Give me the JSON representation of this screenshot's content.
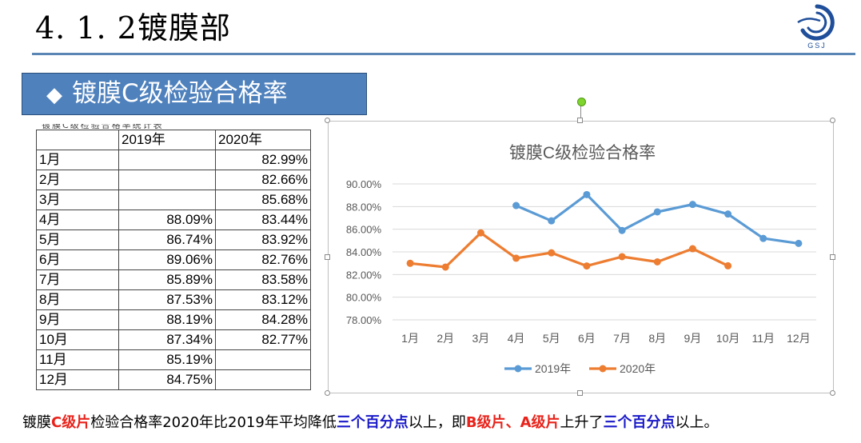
{
  "slide": {
    "title": "4. 1. 2镀膜部",
    "logo_text": "GSJ",
    "banner_glyph": "◆",
    "banner_text": "镀膜C级检验合格率",
    "cut_text": "镀膜C级检验合格率统计表"
  },
  "table": {
    "header": [
      "",
      "2019年",
      "2020年"
    ],
    "rows": [
      [
        "1月",
        "",
        "82.99%"
      ],
      [
        "2月",
        "",
        "82.66%"
      ],
      [
        "3月",
        "",
        "85.68%"
      ],
      [
        "4月",
        "88.09%",
        "83.44%"
      ],
      [
        "5月",
        "86.74%",
        "83.92%"
      ],
      [
        "6月",
        "89.06%",
        "82.76%"
      ],
      [
        "7月",
        "85.89%",
        "83.58%"
      ],
      [
        "8月",
        "87.53%",
        "83.12%"
      ],
      [
        "9月",
        "88.19%",
        "84.28%"
      ],
      [
        "10月",
        "87.34%",
        "82.77%"
      ],
      [
        "11月",
        "85.19%",
        ""
      ],
      [
        "12月",
        "84.75%",
        ""
      ]
    ]
  },
  "chart_data": {
    "type": "line",
    "title": "镀膜C级检验合格率",
    "categories": [
      "1月",
      "2月",
      "3月",
      "4月",
      "5月",
      "6月",
      "7月",
      "8月",
      "9月",
      "10月",
      "11月",
      "12月"
    ],
    "series": [
      {
        "name": "2019年",
        "color": "#5b9bd5",
        "values": [
          null,
          null,
          null,
          88.09,
          86.74,
          89.06,
          85.89,
          87.53,
          88.19,
          87.34,
          85.19,
          84.75
        ]
      },
      {
        "name": "2020年",
        "color": "#ed7d31",
        "values": [
          82.99,
          82.66,
          85.68,
          83.44,
          83.92,
          82.76,
          83.58,
          83.12,
          84.28,
          82.77,
          null,
          null
        ]
      }
    ],
    "ylim": [
      78,
      90
    ],
    "yticks": [
      "78.00%",
      "80.00%",
      "82.00%",
      "84.00%",
      "86.00%",
      "88.00%",
      "90.00%"
    ],
    "grid": true,
    "legend": "bottom"
  },
  "summary": {
    "p1": "镀膜",
    "p2": "C级片",
    "p3": "检验合格率2020年比2019年平均降低",
    "p4": "三个百分点",
    "p5": "以上，即",
    "p6": "B级片、A级片",
    "p7": "上升了",
    "p8": "三个百分点",
    "p9": "以上。"
  }
}
